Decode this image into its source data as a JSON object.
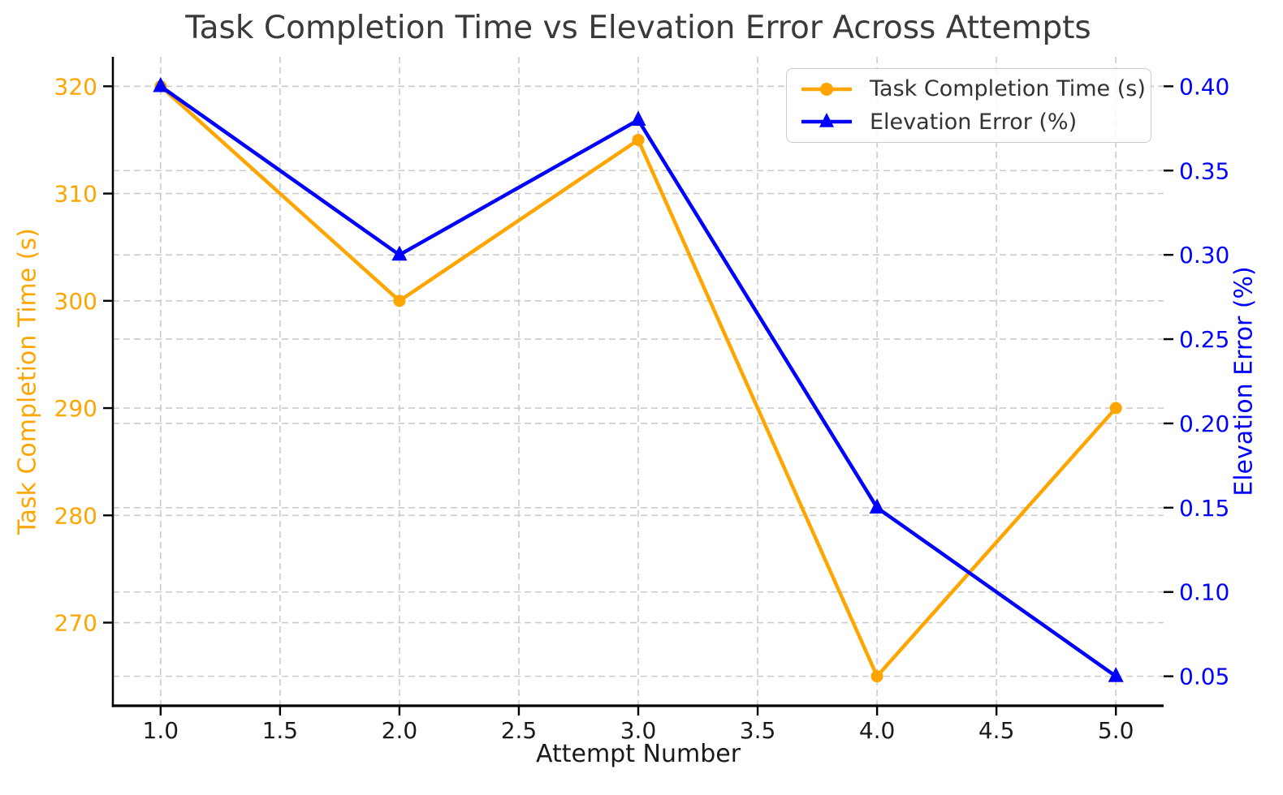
{
  "title": "Task Completion Time vs Elevation Error Across Attempts",
  "colors": {
    "accent_orange": "#FFA500",
    "accent_blue": "#0000FF",
    "grid": "#CCCCCC",
    "title_text": "#3A3A3A",
    "tick_text": "#1A1A1A",
    "legend_text": "#333333"
  },
  "chart_data": {
    "type": "line",
    "title": "Task Completion Time vs Elevation Error Across Attempts",
    "xlabel": "Attempt Number",
    "ylabel_left": "Task Completion Time (s)",
    "ylabel_right": "Elevation Error (%)",
    "x": [
      1,
      2,
      3,
      4,
      5
    ],
    "series": [
      {
        "name": "Task Completion Time (s)",
        "axis": "left",
        "color": "#FFA500",
        "marker": "circle",
        "values": [
          320,
          300,
          315,
          265,
          290
        ]
      },
      {
        "name": "Elevation Error (%)",
        "axis": "right",
        "color": "#0000FF",
        "marker": "triangle-up",
        "values": [
          0.4,
          0.3,
          0.38,
          0.15,
          0.05
        ]
      }
    ],
    "xlim": [
      0.8,
      5.2
    ],
    "ylim_left": [
      262.25,
      322.75
    ],
    "ylim_right": [
      0.0325,
      0.4175
    ],
    "xticks": {
      "values": [
        1.0,
        1.5,
        2.0,
        2.5,
        3.0,
        3.5,
        4.0,
        4.5,
        5.0
      ],
      "labels": [
        "1.0",
        "1.5",
        "2.0",
        "2.5",
        "3.0",
        "3.5",
        "4.0",
        "4.5",
        "5.0"
      ]
    },
    "yticks_left": {
      "values": [
        270,
        280,
        290,
        300,
        310,
        320
      ],
      "labels": [
        "270",
        "280",
        "290",
        "300",
        "310",
        "320"
      ]
    },
    "yticks_right": {
      "values": [
        0.05,
        0.1,
        0.15,
        0.2,
        0.25,
        0.3,
        0.35,
        0.4
      ],
      "labels": [
        "0.05",
        "0.10",
        "0.15",
        "0.20",
        "0.25",
        "0.30",
        "0.35",
        "0.40"
      ]
    },
    "grid": true,
    "grid_style": "dashed",
    "legend_position": "top-right"
  },
  "legend": {
    "items": [
      {
        "label": "Task Completion Time (s)"
      },
      {
        "label": "Elevation Error (%)"
      }
    ]
  }
}
